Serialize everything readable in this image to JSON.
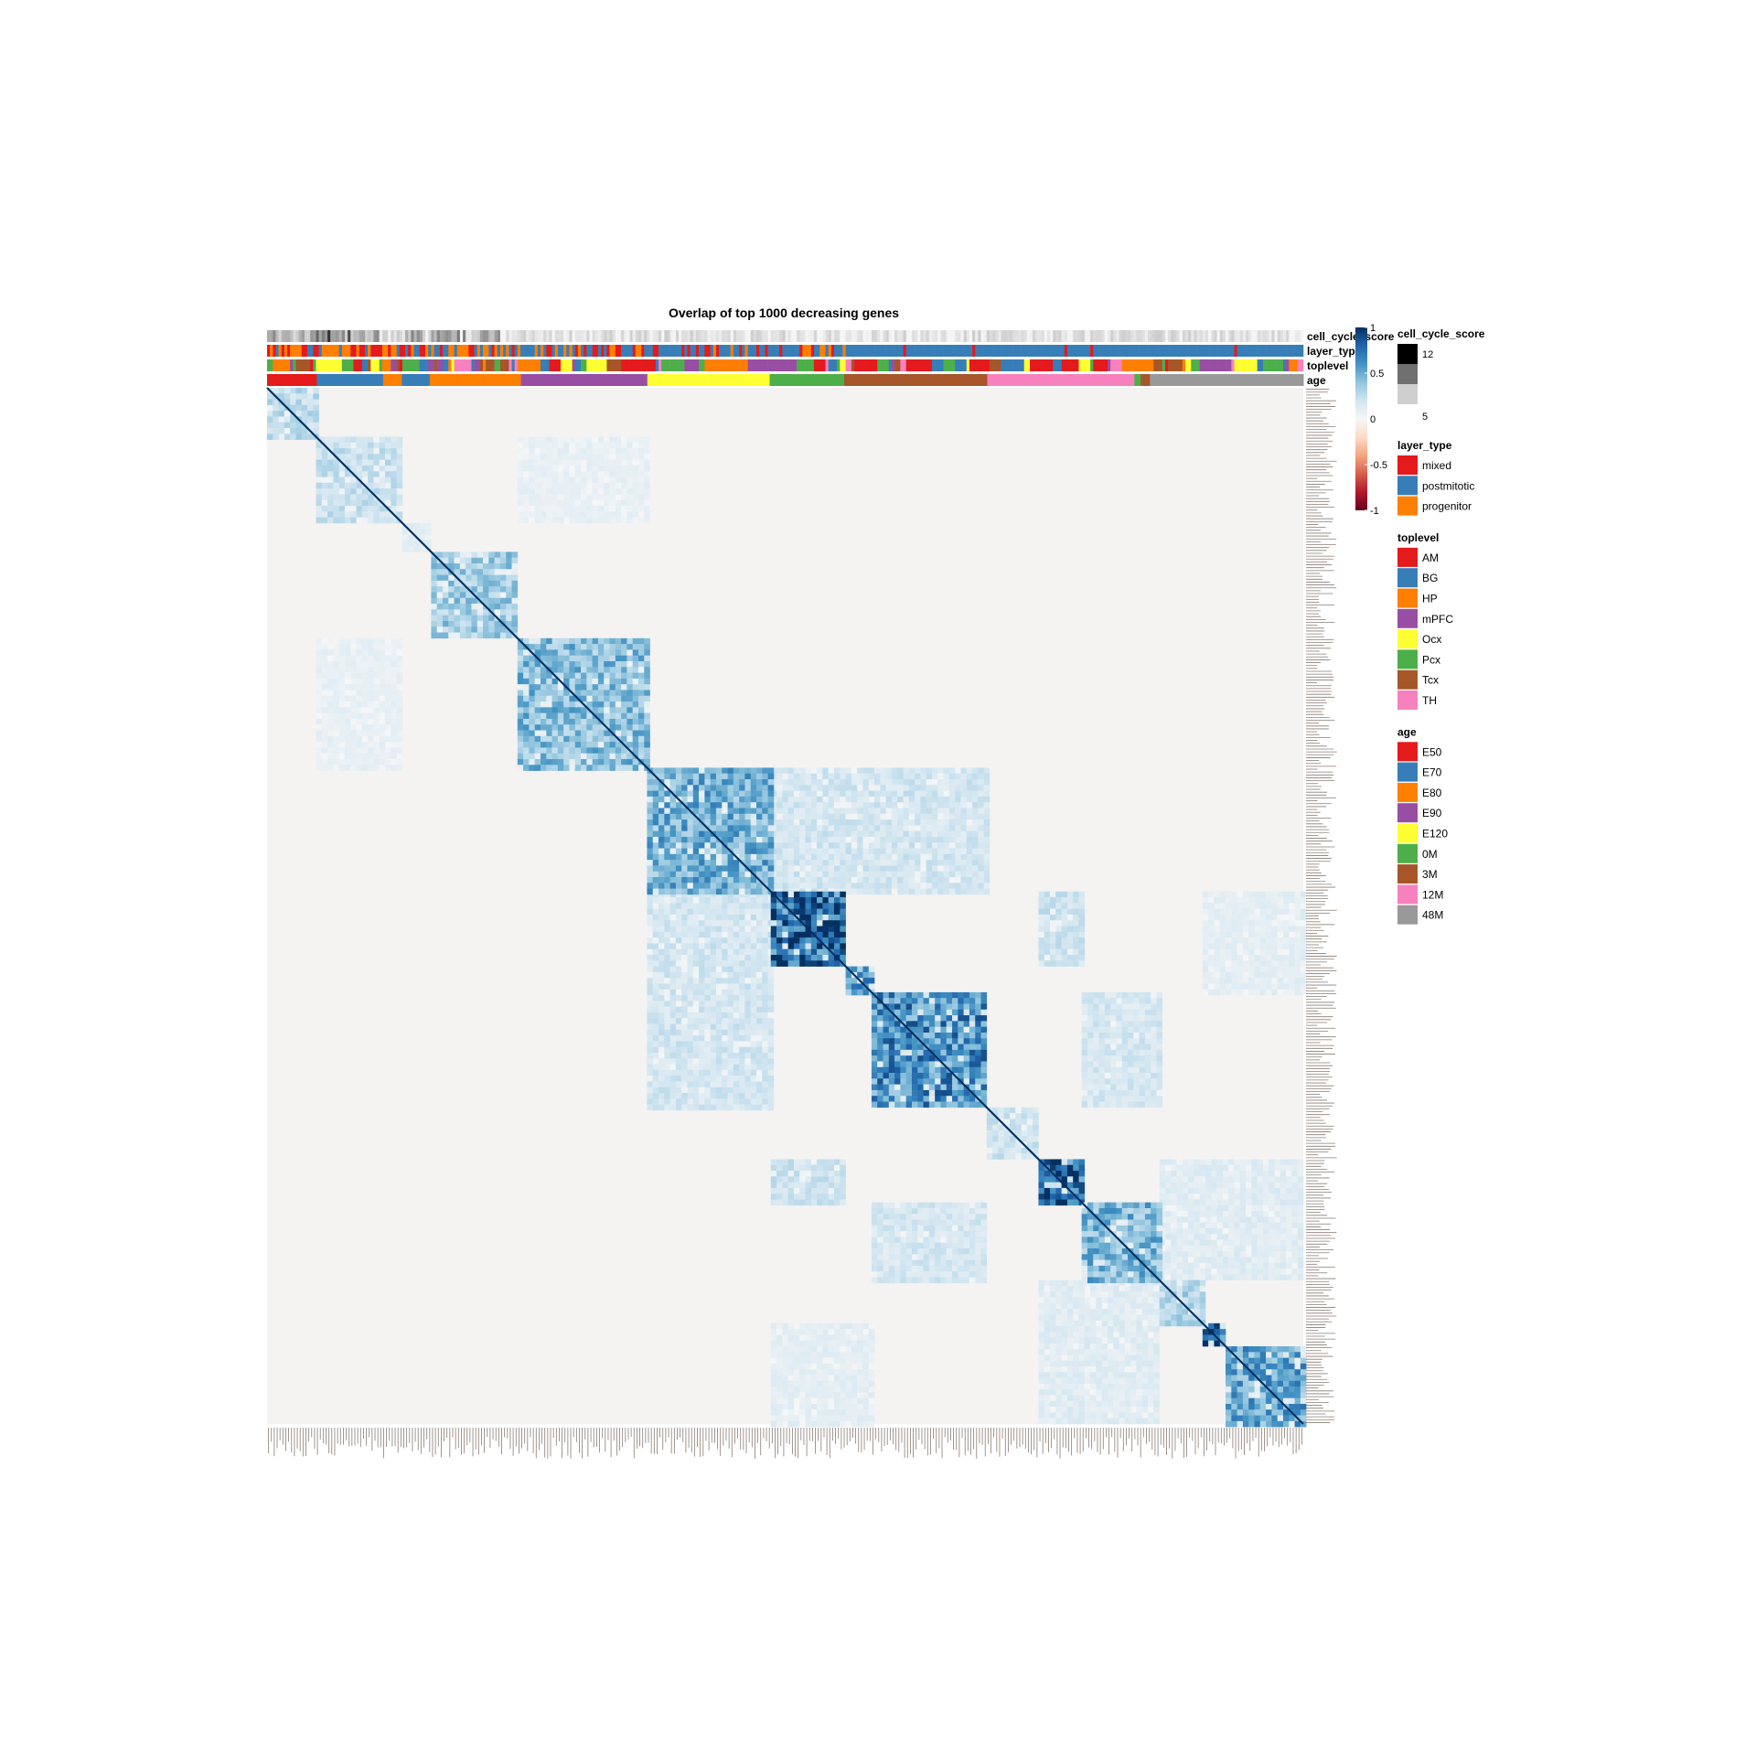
{
  "chart_data": {
    "type": "heatmap",
    "title": "Overlap of top 1000 decreasing genes",
    "matrix_kind": "symmetric similarity heatmap with hierarchical block structure",
    "background_value": 0,
    "diagonal_value": 1,
    "blocks": [
      {
        "start": 0.0,
        "end": 0.048,
        "value": 0.25
      },
      {
        "start": 0.048,
        "end": 0.13,
        "value": 0.22
      },
      {
        "start": 0.13,
        "end": 0.157,
        "value": 0.1
      },
      {
        "start": 0.157,
        "end": 0.242,
        "value": 0.35
      },
      {
        "start": 0.242,
        "end": 0.367,
        "value": 0.42
      },
      {
        "start": 0.367,
        "end": 0.485,
        "value": 0.48
      },
      {
        "start": 0.485,
        "end": 0.557,
        "value": 0.78
      },
      {
        "start": 0.557,
        "end": 0.583,
        "value": 0.55
      },
      {
        "start": 0.583,
        "end": 0.695,
        "value": 0.62
      },
      {
        "start": 0.695,
        "end": 0.745,
        "value": 0.2
      },
      {
        "start": 0.745,
        "end": 0.785,
        "value": 0.8
      },
      {
        "start": 0.785,
        "end": 0.86,
        "value": 0.45
      },
      {
        "start": 0.86,
        "end": 0.902,
        "value": 0.3
      },
      {
        "start": 0.902,
        "end": 0.926,
        "value": 0.72
      },
      {
        "start": 0.926,
        "end": 1.0,
        "value": 0.52
      }
    ],
    "off_diagonal_links": [
      {
        "a": [
          0.367,
          0.485
        ],
        "b": [
          0.485,
          0.695
        ],
        "value": 0.18
      },
      {
        "a": [
          0.485,
          0.557
        ],
        "b": [
          0.745,
          0.785
        ],
        "value": 0.2
      },
      {
        "a": [
          0.583,
          0.695
        ],
        "b": [
          0.785,
          0.86
        ],
        "value": 0.17
      },
      {
        "a": [
          0.745,
          0.86
        ],
        "b": [
          0.86,
          1.0
        ],
        "value": 0.12
      },
      {
        "a": [
          0.048,
          0.13
        ],
        "b": [
          0.242,
          0.367
        ],
        "value": 0.08
      },
      {
        "a": [
          0.902,
          1.0
        ],
        "b": [
          0.485,
          0.583
        ],
        "value": 0.1
      }
    ],
    "colorbar": {
      "ticks": [
        "1",
        "0.5",
        "0",
        "-0.5",
        "-1"
      ],
      "colors": [
        "#053061",
        "#2166ac",
        "#4393c3",
        "#92c5de",
        "#d1e5f0",
        "#f7f7f7",
        "#fddbc7",
        "#f4a582",
        "#d6604d",
        "#b2182b",
        "#67001f"
      ]
    },
    "annotation_rows": [
      "cell_cycle_score",
      "layer_type",
      "toplevel",
      "age"
    ],
    "annotation_row_labels": [
      "cell_cycle_score",
      "layer_type",
      "toplevel",
      "age"
    ],
    "age_segments": [
      {
        "level": "E50",
        "end": 0.048
      },
      {
        "level": "E70",
        "end": 0.112
      },
      {
        "level": "E80",
        "end": 0.13
      },
      {
        "level": "E70",
        "end": 0.157
      },
      {
        "level": "E80",
        "end": 0.245
      },
      {
        "level": "E90",
        "end": 0.367
      },
      {
        "level": "E120",
        "end": 0.485
      },
      {
        "level": "0M",
        "end": 0.557
      },
      {
        "level": "3M",
        "end": 0.695
      },
      {
        "level": "12M",
        "end": 0.837
      },
      {
        "level": "0M",
        "end": 0.843
      },
      {
        "level": "3M",
        "end": 0.852
      },
      {
        "level": "48M",
        "end": 1.0
      }
    ],
    "legends": [
      {
        "title": "cell_cycle_score",
        "type": "gradient",
        "colors": [
          "#000000",
          "#707070",
          "#cfcfcf"
        ],
        "labels": [
          "12",
          "5"
        ]
      },
      {
        "title": "layer_type",
        "type": "discrete",
        "items": [
          {
            "label": "mixed",
            "color": "#e41a1c"
          },
          {
            "label": "postmitotic",
            "color": "#377eb8"
          },
          {
            "label": "progenitor",
            "color": "#ff7f00"
          }
        ]
      },
      {
        "title": "toplevel",
        "type": "discrete",
        "items": [
          {
            "label": "AM",
            "color": "#e41a1c"
          },
          {
            "label": "BG",
            "color": "#377eb8"
          },
          {
            "label": "HP",
            "color": "#ff7f00"
          },
          {
            "label": "mPFC",
            "color": "#984ea3"
          },
          {
            "label": "Ocx",
            "color": "#ffff33"
          },
          {
            "label": "Pcx",
            "color": "#4daf4a"
          },
          {
            "label": "Tcx",
            "color": "#a65628"
          },
          {
            "label": "TH",
            "color": "#f781bf"
          }
        ]
      },
      {
        "title": "age",
        "type": "discrete",
        "items": [
          {
            "label": "E50",
            "color": "#e41a1c"
          },
          {
            "label": "E70",
            "color": "#377eb8"
          },
          {
            "label": "E80",
            "color": "#ff7f00"
          },
          {
            "label": "E90",
            "color": "#984ea3"
          },
          {
            "label": "E120",
            "color": "#ffff33"
          },
          {
            "label": "0M",
            "color": "#4daf4a"
          },
          {
            "label": "3M",
            "color": "#a65628"
          },
          {
            "label": "12M",
            "color": "#f781bf"
          },
          {
            "label": "48M",
            "color": "#999999"
          }
        ]
      }
    ]
  }
}
